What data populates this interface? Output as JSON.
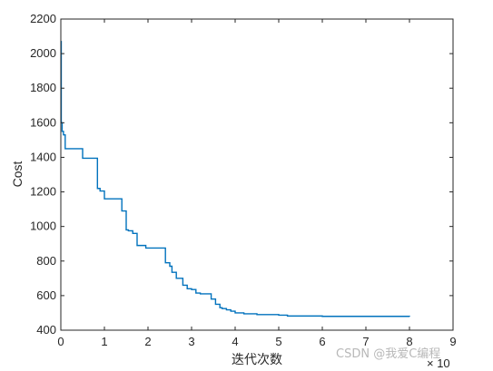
{
  "chart_data": {
    "type": "line",
    "xlabel": "迭代次数",
    "ylabel": "Cost",
    "x_exponent_label": "× 10",
    "xlim": [
      0,
      90000
    ],
    "ylim": [
      400,
      2200
    ],
    "x_ticks": [
      0,
      10000,
      20000,
      30000,
      40000,
      50000,
      60000,
      70000,
      80000,
      90000
    ],
    "x_tick_labels": [
      "0",
      "1",
      "2",
      "3",
      "4",
      "5",
      "6",
      "7",
      "8",
      "9"
    ],
    "y_ticks": [
      400,
      600,
      800,
      1000,
      1200,
      1400,
      1600,
      1800,
      2000,
      2200
    ],
    "y_tick_labels": [
      "400",
      "600",
      "800",
      "1000",
      "1200",
      "1400",
      "1600",
      "1800",
      "2000",
      "2200"
    ],
    "grid": false,
    "line_color": "#0072bd",
    "series": [
      {
        "step": true,
        "x": [
          0,
          100,
          300,
          600,
          1000,
          5000,
          8400,
          9000,
          10000,
          14000,
          15000,
          15500,
          16500,
          17500,
          19500,
          24000,
          25000,
          25500,
          26500,
          28000,
          29000,
          30000,
          31000,
          32000,
          34500,
          35500,
          36500,
          37000,
          38000,
          39000,
          40000,
          42000,
          45000,
          50000,
          52000,
          60000,
          80000
        ],
        "y": [
          2070,
          1600,
          1550,
          1530,
          1450,
          1395,
          1220,
          1205,
          1160,
          1090,
          980,
          975,
          960,
          890,
          875,
          790,
          770,
          735,
          700,
          660,
          640,
          635,
          615,
          610,
          580,
          550,
          530,
          525,
          518,
          510,
          500,
          495,
          490,
          487,
          482,
          480,
          478
        ]
      }
    ]
  },
  "watermark": "CSDN @我爱C编程"
}
